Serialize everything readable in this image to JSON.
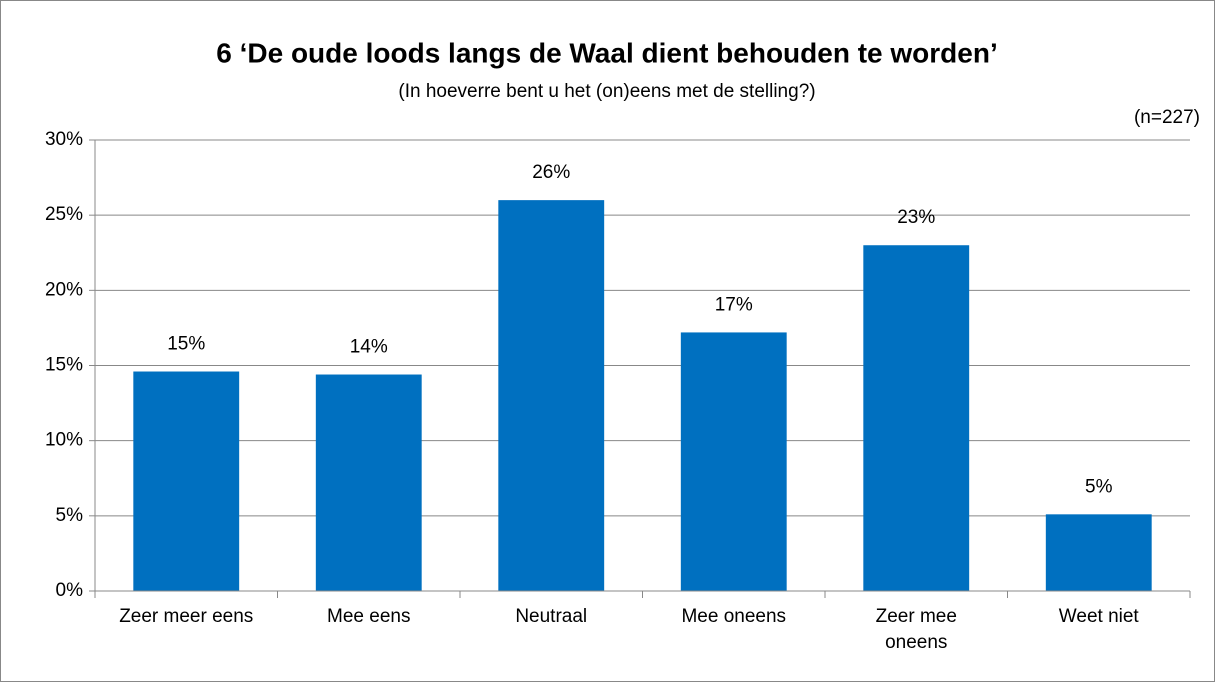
{
  "chart_data": {
    "type": "bar",
    "title": "6 ‘De oude loods langs de Waal dient behouden te worden’",
    "subtitle": "(In hoeverre bent u het (on)eens met de stelling?)",
    "annotation": "(n=227)",
    "categories": [
      "Zeer meer eens",
      "Mee eens",
      "Neutraal",
      "Mee oneens",
      "Zeer mee oneens",
      "Weet niet"
    ],
    "values": [
      14.6,
      14.4,
      26,
      17.2,
      23,
      5.1
    ],
    "value_labels": [
      "15%",
      "14%",
      "26%",
      "17%",
      "23%",
      "5%"
    ],
    "color": "#0070c0",
    "ylim": [
      0,
      30
    ],
    "yticks": [
      {
        "value": 0,
        "label": "0%"
      },
      {
        "value": 5,
        "label": "5%"
      },
      {
        "value": 10,
        "label": "10%"
      },
      {
        "value": 15,
        "label": "15%"
      },
      {
        "value": 20,
        "label": "20%"
      },
      {
        "value": 25,
        "label": "25%"
      },
      {
        "value": 30,
        "label": "30%"
      }
    ],
    "grid": true
  }
}
